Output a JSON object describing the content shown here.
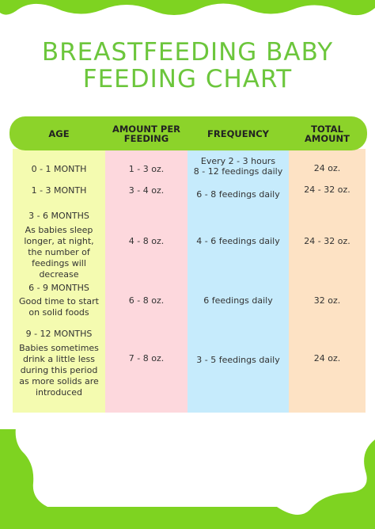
{
  "header": {
    "title": [
      "BREASTFEEDING BABY",
      "FEEDING CHART"
    ]
  },
  "table": {
    "columns": [
      "AGE",
      "AMOUNT PER FEEDING",
      "FREQUENCY",
      "TOTAL AMOUNT"
    ],
    "rows": [
      {
        "age": "0 - 1 MONTH",
        "amount": "1 - 3 oz.",
        "frequency": [
          "Every 2 - 3 hours",
          "8 - 12 feedings daily"
        ],
        "total": "24 oz."
      },
      {
        "age": "1 - 3 MONTH",
        "amount": "3 - 4 oz.",
        "frequency": [
          "6 - 8 feedings daily"
        ],
        "total": "24 - 32 oz."
      },
      {
        "age": "3 - 6 MONTHS",
        "note": "As babies sleep longer, at night, the number of feedings will decrease",
        "amount": "4 - 8 oz.",
        "frequency": [
          "4 - 6 feedings daily"
        ],
        "total": "24 - 32 oz."
      },
      {
        "age": "6 - 9 MONTHS",
        "note": "Good time to start on solid foods",
        "amount": "6 - 8 oz.",
        "frequency": [
          "6 feedings daily"
        ],
        "total": "32 oz."
      },
      {
        "age": "9 - 12 MONTHS",
        "note": "Babies sometimes drink a little less during this period as more solids are introduced",
        "amount": "7 - 8 oz.",
        "frequency": [
          "3 - 5 feedings daily"
        ],
        "total": "24 oz."
      }
    ]
  }
}
